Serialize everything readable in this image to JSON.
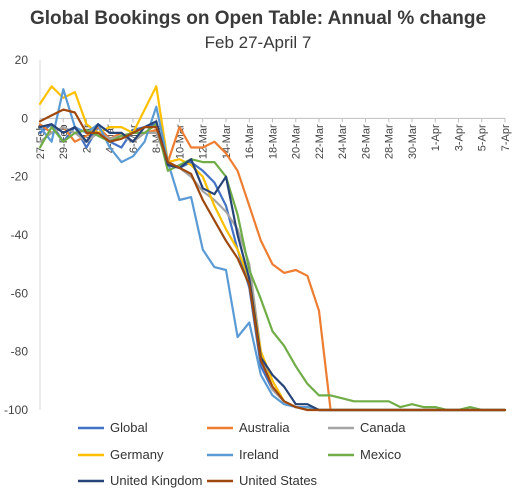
{
  "chart_data": {
    "type": "line",
    "title": "Global Bookings on Open Table: Annual % change",
    "subtitle": "Feb 27-April 7",
    "xlabel": "",
    "ylabel": "",
    "ylim": [
      -100,
      20
    ],
    "yticks": [
      20,
      0,
      -20,
      -40,
      -60,
      -80,
      -100
    ],
    "x": [
      "27-Feb",
      "28-Feb",
      "29-Feb",
      "1-Mar",
      "2-Mar",
      "3-Mar",
      "4-Mar",
      "5-Mar",
      "6-Mar",
      "7-Mar",
      "8-Mar",
      "9-Mar",
      "10-Mar",
      "11-Mar",
      "12-Mar",
      "13-Mar",
      "14-Mar",
      "15-Mar",
      "16-Mar",
      "17-Mar",
      "18-Mar",
      "19-Mar",
      "20-Mar",
      "21-Mar",
      "22-Mar",
      "23-Mar",
      "24-Mar",
      "25-Mar",
      "26-Mar",
      "27-Mar",
      "28-Mar",
      "29-Mar",
      "30-Mar",
      "31-Mar",
      "1-Apr",
      "2-Apr",
      "3-Apr",
      "4-Apr",
      "5-Apr",
      "6-Apr",
      "7-Apr"
    ],
    "xtick_labels": [
      "27-Feb",
      "29-Feb",
      "2-Mar",
      "4-Mar",
      "6-Mar",
      "8-Mar",
      "10-Mar",
      "12-Mar",
      "14-Mar",
      "16-Mar",
      "18-Mar",
      "20-Mar",
      "22-Mar",
      "24-Mar",
      "26-Mar",
      "28-Mar",
      "30-Mar",
      "1-Apr",
      "3-Apr",
      "5-Apr",
      "7-Apr"
    ],
    "grid": false,
    "legend_position": "bottom",
    "series": [
      {
        "name": "Global",
        "color": "#4472c4",
        "values": [
          -5,
          -2,
          -8,
          -3,
          -10,
          -3,
          -8,
          -10,
          -4,
          -3,
          -2,
          -15,
          -17,
          -15,
          -18,
          -22,
          -30,
          -45,
          -58,
          -85,
          -93,
          -97,
          -99,
          -99,
          -100,
          -100,
          -100,
          -100,
          -100,
          -100,
          -100,
          -100,
          -100,
          -100,
          -100,
          -100,
          -100,
          -100,
          -100,
          -100,
          -100
        ]
      },
      {
        "name": "Australia",
        "color": "#ed7d31",
        "values": [
          -2,
          -5,
          -3,
          -8,
          -6,
          -3,
          -7,
          -5,
          -8,
          -5,
          -4,
          -15,
          -3,
          -10,
          -10,
          -8,
          -12,
          -18,
          -30,
          -42,
          -50,
          -53,
          -52,
          -54,
          -66,
          -100,
          -100,
          -100,
          -100,
          -100,
          -100,
          -100,
          -100,
          -100,
          -100,
          -100,
          -100,
          -100,
          -100,
          -100,
          -100
        ]
      },
      {
        "name": "Canada",
        "color": "#a5a5a5",
        "values": [
          -8,
          -5,
          -3,
          -5,
          -8,
          -5,
          -7,
          -6,
          -8,
          -5,
          -5,
          -15,
          -17,
          -20,
          -25,
          -28,
          -32,
          -38,
          -50,
          -80,
          -93,
          -97,
          -99,
          -99,
          -100,
          -100,
          -100,
          -100,
          -100,
          -100,
          -100,
          -100,
          -100,
          -100,
          -100,
          -100,
          -100,
          -100,
          -100,
          -100,
          -100
        ]
      },
      {
        "name": "Germany",
        "color": "#ffc000",
        "values": [
          5,
          11,
          7,
          9,
          -2,
          -5,
          -3,
          -3,
          -5,
          3,
          11,
          -15,
          -14,
          -16,
          -20,
          -30,
          -38,
          -45,
          -55,
          -80,
          -90,
          -97,
          -99,
          -99,
          -100,
          -100,
          -100,
          -100,
          -100,
          -100,
          -100,
          -100,
          -100,
          -100,
          -100,
          -100,
          -100,
          -100,
          -100,
          -100,
          -100
        ]
      },
      {
        "name": "Ireland",
        "color": "#5b9bd5",
        "values": [
          -3,
          -8,
          10,
          -3,
          -5,
          -2,
          -10,
          -15,
          -13,
          -8,
          4,
          -15,
          -28,
          -27,
          -45,
          -51,
          -52,
          -75,
          -70,
          -88,
          -95,
          -98,
          -99,
          -99,
          -100,
          -100,
          -100,
          -100,
          -100,
          -100,
          -100,
          -100,
          -100,
          -100,
          -100,
          -100,
          -100,
          -100,
          -100,
          -100,
          -100
        ]
      },
      {
        "name": "Mexico",
        "color": "#70ad47",
        "values": [
          -10,
          -3,
          -8,
          -5,
          -4,
          -6,
          -8,
          -6,
          -5,
          -5,
          -2,
          -18,
          -16,
          -14,
          -15,
          -15,
          -20,
          -33,
          -52,
          -62,
          -73,
          -78,
          -85,
          -91,
          -95,
          -95,
          -96,
          -97,
          -97,
          -97,
          -97,
          -99,
          -98,
          -99,
          -99,
          -100,
          -100,
          -99,
          -100,
          -100,
          -100
        ]
      },
      {
        "name": "United Kingdom",
        "color": "#264478",
        "values": [
          -3,
          -2,
          -5,
          -3,
          -8,
          -2,
          -5,
          -5,
          -8,
          -3,
          -1,
          -16,
          -17,
          -14,
          -24,
          -26,
          -20,
          -40,
          -55,
          -82,
          -88,
          -92,
          -98,
          -98,
          -100,
          -100,
          -100,
          -100,
          -100,
          -100,
          -100,
          -100,
          -100,
          -100,
          -100,
          -100,
          -100,
          -100,
          -100,
          -100,
          -100
        ]
      },
      {
        "name": "United States",
        "color": "#9e480e",
        "values": [
          -1,
          1,
          3,
          2,
          -5,
          -5,
          -8,
          -7,
          -5,
          -3,
          -3,
          -15,
          -17,
          -19,
          -28,
          -35,
          -42,
          -48,
          -57,
          -83,
          -92,
          -97,
          -99,
          -100,
          -100,
          -100,
          -100,
          -100,
          -100,
          -100,
          -100,
          -100,
          -100,
          -100,
          -100,
          -100,
          -100,
          -100,
          -100,
          -100,
          -100
        ]
      }
    ]
  }
}
